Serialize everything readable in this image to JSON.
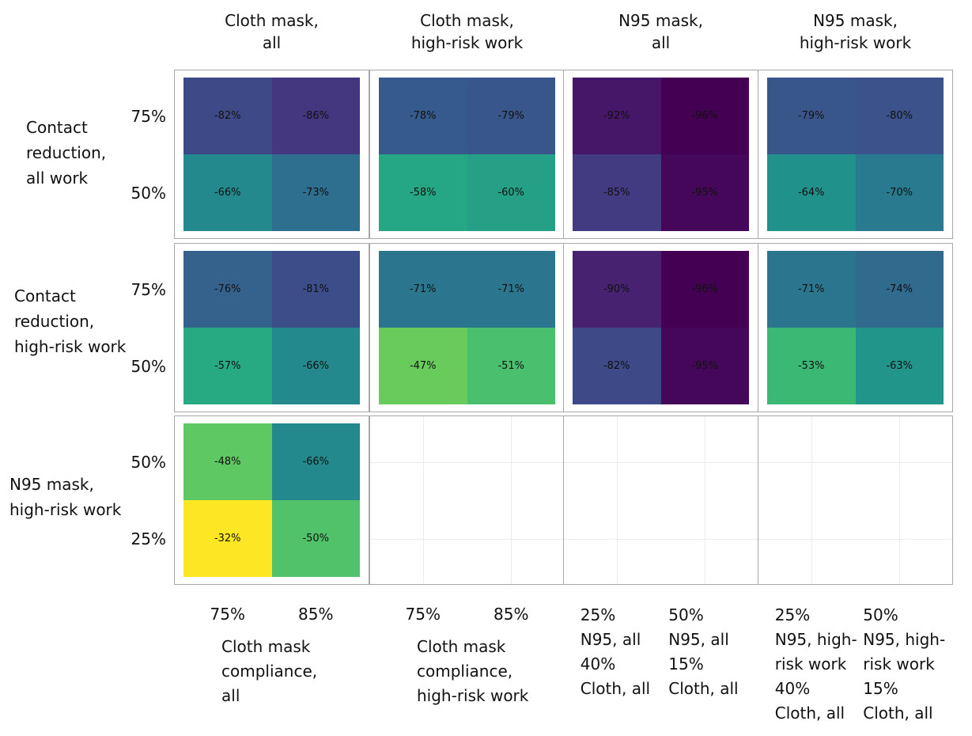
{
  "chart_data": {
    "type": "heatmap",
    "colormap": "viridis",
    "columns": [
      {
        "title": "Cloth mask,\nall",
        "ticks": [
          "75%",
          "85%"
        ],
        "axis_title": "Cloth mask\ncompliance,\nall"
      },
      {
        "title": "Cloth mask,\nhigh-risk work",
        "ticks": [
          "75%",
          "85%"
        ],
        "axis_title": "Cloth mask\ncompliance,\nhigh-risk work"
      },
      {
        "title": "N95 mask,\nall",
        "ticks": [
          "25%\nN95, all\n40%\nCloth, all",
          "50%\nN95, all\n15%\nCloth, all"
        ]
      },
      {
        "title": "N95 mask,\nhigh-risk work",
        "ticks": [
          "25%\nN95, high-\nrisk work\n40%\nCloth, all",
          "50%\nN95, high-\nrisk work\n15%\nCloth, all"
        ]
      }
    ],
    "rows": [
      {
        "title": "Contact\nreduction,\nall work",
        "ticks": [
          "75%",
          "50%"
        ],
        "panels": [
          {
            "values": [
              [
                -82,
                -86
              ],
              [
                -66,
                -73
              ]
            ],
            "value_labels": [
              [
                "-82%",
                "-86%"
              ],
              [
                "-66%",
                "-73%"
              ]
            ]
          },
          {
            "values": [
              [
                -78,
                -79
              ],
              [
                -58,
                -60
              ]
            ],
            "value_labels": [
              [
                "-78%",
                "-79%"
              ],
              [
                "-58%",
                "-60%"
              ]
            ]
          },
          {
            "values": [
              [
                -92,
                -96
              ],
              [
                -85,
                -95
              ]
            ],
            "value_labels": [
              [
                "-92%",
                "-96%"
              ],
              [
                "-85%",
                "-95%"
              ]
            ]
          },
          {
            "values": [
              [
                -79,
                -80
              ],
              [
                -64,
                -70
              ]
            ],
            "value_labels": [
              [
                "-79%",
                "-80%"
              ],
              [
                "-64%",
                "-70%"
              ]
            ]
          }
        ]
      },
      {
        "title": "Contact\nreduction,\nhigh-risk work",
        "ticks": [
          "75%",
          "50%"
        ],
        "panels": [
          {
            "values": [
              [
                -76,
                -81
              ],
              [
                -57,
                -66
              ]
            ],
            "value_labels": [
              [
                "-76%",
                "-81%"
              ],
              [
                "-57%",
                "-66%"
              ]
            ]
          },
          {
            "values": [
              [
                -71,
                -71
              ],
              [
                -47,
                -51
              ]
            ],
            "value_labels": [
              [
                "-71%",
                "-71%"
              ],
              [
                "-47%",
                "-51%"
              ]
            ]
          },
          {
            "values": [
              [
                -90,
                -96
              ],
              [
                -82,
                -95
              ]
            ],
            "value_labels": [
              [
                "-90%",
                "-96%"
              ],
              [
                "-82%",
                "-95%"
              ]
            ]
          },
          {
            "values": [
              [
                -71,
                -74
              ],
              [
                -53,
                -63
              ]
            ],
            "value_labels": [
              [
                "-71%",
                "-74%"
              ],
              [
                "-53%",
                "-63%"
              ]
            ]
          }
        ]
      },
      {
        "title": "N95 mask,\nhigh-risk work",
        "ticks": [
          "50%",
          "25%"
        ],
        "panels": [
          {
            "values": [
              [
                -48,
                -66
              ],
              [
                -32,
                -50
              ]
            ],
            "value_labels": [
              [
                "-48%",
                "-66%"
              ],
              [
                "-32%",
                "-50%"
              ]
            ]
          }
        ]
      }
    ]
  }
}
